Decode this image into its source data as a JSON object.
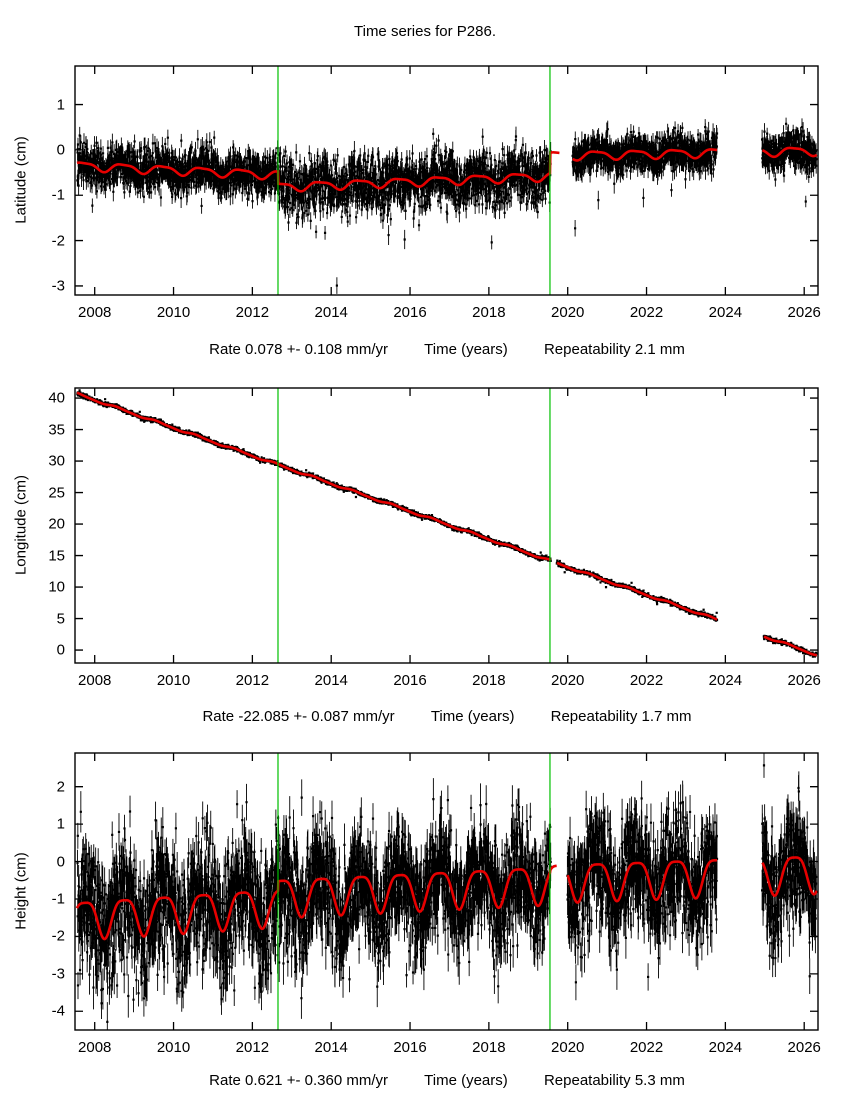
{
  "chart_data": {
    "type": "scatter",
    "title": "Time series for P286.",
    "station": "P286",
    "grid": false,
    "legend": "none",
    "x_axis": {
      "label": "Time (years)",
      "min": 2007.5,
      "max": 2026.35,
      "ticks": [
        2008,
        2010,
        2012,
        2014,
        2016,
        2018,
        2020,
        2022,
        2024,
        2026
      ]
    },
    "event_lines": [
      2012.65,
      2019.55
    ],
    "colors": {
      "background": "#ffffff",
      "points": "#000000",
      "model": "#e60000",
      "event_line": "#00c000",
      "text": "#000000"
    },
    "panels": [
      {
        "id": "latitude",
        "ylabel": "Latitude (cm)",
        "ylim": [
          -3.2,
          1.85
        ],
        "yticks": [
          -3,
          -2,
          -1,
          0,
          1
        ],
        "rate_label": "Rate 0.078 +- 0.108 mm/yr",
        "repeatability_label": "Repeatability 2.1 mm",
        "rate_mm_per_yr": 0.078,
        "rate_uncertainty_mm_per_yr": 0.108,
        "repeatability_mm": 2.1,
        "model": {
          "segments": [
            {
              "t0": 2007.5,
              "t1": 2012.65,
              "v0": -0.35,
              "v1": -0.55
            },
            {
              "t0": 2012.65,
              "t1": 2019.55,
              "v0": -0.82,
              "v1": -0.58
            },
            {
              "t0": 2019.55,
              "t1": 2026.35,
              "v0": -0.13,
              "v1": -0.02
            }
          ],
          "annual_amp": 0.09,
          "annual_phase": 0.72,
          "semiannual_amp": 0.025
        },
        "scatter": {
          "sigma": 0.23,
          "error_bar": 0.17,
          "step": 0.004,
          "noise_eras": [
            [
              2007.5,
              2012.65,
              1.0
            ],
            [
              2012.65,
              2019.56,
              1.3
            ],
            [
              2019.56,
              2026.35,
              0.8
            ]
          ],
          "outlier_prob": 0.005,
          "outlier_range": [
            0.5,
            1.5
          ],
          "outlier_up_frac": 0.2
        },
        "data_gaps": [
          [
            2019.57,
            2020.12
          ],
          [
            2023.79,
            2024.93
          ]
        ],
        "model_gaps": [
          [
            2019.79,
            2020.12
          ],
          [
            2023.79,
            2024.93
          ]
        ]
      },
      {
        "id": "longitude",
        "ylabel": "Longitude (cm)",
        "ylim": [
          -2.05,
          41.6
        ],
        "yticks": [
          0,
          5,
          10,
          15,
          20,
          25,
          30,
          35,
          40
        ],
        "rate_label": "Rate -22.085 +- 0.087 mm/yr",
        "repeatability_label": "Repeatability 1.7 mm",
        "rate_mm_per_yr": -22.085,
        "rate_uncertainty_mm_per_yr": 0.087,
        "repeatability_mm": 1.7,
        "model": {
          "segments": [
            {
              "t0": 2007.5,
              "t1": 2026.35,
              "v0": 40.8,
              "v1": -0.83
            }
          ],
          "annual_amp": 0.14,
          "annual_phase": 0.6,
          "semiannual_amp": 0.04
        },
        "scatter": {
          "sigma": 0.17,
          "error_bar": 0.15,
          "step": 0.004,
          "noise_eras": [],
          "outlier_prob": 0.002,
          "outlier_range": [
            0.4,
            1.0
          ],
          "outlier_up_frac": 0.5
        },
        "data_gaps": [
          [
            2019.57,
            2019.72
          ],
          [
            2023.79,
            2024.97
          ]
        ],
        "model_gaps": [
          [
            2019.57,
            2019.72
          ],
          [
            2023.79,
            2024.97
          ]
        ]
      },
      {
        "id": "height",
        "ylabel": "Height (cm)",
        "ylim": [
          -4.5,
          2.9
        ],
        "yticks": [
          -4,
          -3,
          -2,
          -1,
          0,
          1,
          2
        ],
        "rate_label": "Rate 0.621 +- 0.360 mm/yr",
        "repeatability_label": "Repeatability 5.3 mm",
        "rate_mm_per_yr": 0.621,
        "rate_uncertainty_mm_per_yr": 0.36,
        "repeatability_mm": 5.3,
        "model": {
          "segments": [
            {
              "t0": 2007.5,
              "t1": 2012.65,
              "v0": -1.5,
              "v1": -1.15
            },
            {
              "t0": 2012.65,
              "t1": 2019.55,
              "v0": -0.9,
              "v1": -0.55
            },
            {
              "t0": 2019.55,
              "t1": 2026.35,
              "v0": -0.5,
              "v1": -0.25
            }
          ],
          "annual_amp": 0.5,
          "annual_phase": 0.75,
          "semiannual_amp": 0.12
        },
        "scatter": {
          "sigma": 0.72,
          "error_bar": 0.45,
          "step": 0.004,
          "noise_eras": [
            [
              2007.5,
              2013.0,
              1.15
            ],
            [
              2013.0,
              2019.56,
              1.0
            ],
            [
              2019.56,
              2026.35,
              1.0
            ]
          ],
          "outlier_prob": 0.01,
          "outlier_range": [
            0.8,
            1.8
          ],
          "outlier_up_frac": 0.3
        },
        "data_gaps": [
          [
            2019.57,
            2019.99
          ],
          [
            2023.79,
            2024.93
          ]
        ],
        "model_gaps": [
          [
            2019.72,
            2019.99
          ],
          [
            2023.79,
            2024.93
          ]
        ]
      }
    ]
  }
}
